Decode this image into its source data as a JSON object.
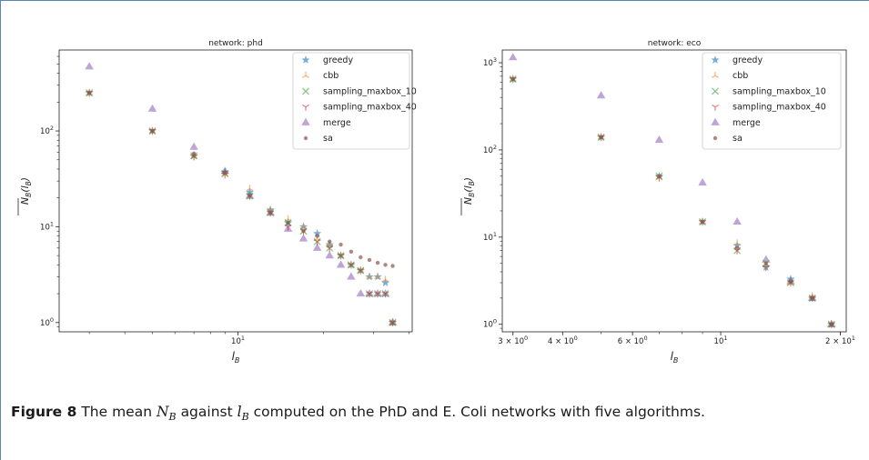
{
  "colors": {
    "greedy": "#1f77b4",
    "cbb": "#ff7f0e",
    "sampling_maxbox_10": "#2ca02c",
    "sampling_maxbox_40": "#d62728",
    "merge": "#9467bd",
    "sa": "#8c564b"
  },
  "legend_entries": [
    "greedy",
    "cbb",
    "sampling_maxbox_10",
    "sampling_maxbox_40",
    "merge",
    "sa"
  ],
  "markers": {
    "greedy": "star",
    "cbb": "tri-up",
    "sampling_maxbox_10": "x",
    "sampling_maxbox_40": "tri-down",
    "merge": "triangle",
    "sa": "dot"
  },
  "caption": {
    "label": "Figure 8",
    "text_before": "The mean",
    "sym1": "N",
    "sub1": "B",
    "text_mid": "against",
    "sym2": "l",
    "sub2": "B",
    "text_after": "computed on the PhD and E. Coli networks with five algorithms."
  },
  "chart_data": [
    {
      "type": "scatter",
      "title": "network: phd",
      "xlabel": "l_B",
      "ylabel": "N_B(l_B) mean",
      "xscale": "log",
      "yscale": "log",
      "xlim": [
        2.35,
        41.0
      ],
      "ylim": [
        0.8,
        700
      ],
      "xticks": [
        {
          "value": 10,
          "label": "10^1"
        }
      ],
      "yticks": [
        {
          "value": 1,
          "label": "10^0"
        },
        {
          "value": 10,
          "label": "10^1"
        },
        {
          "value": 100,
          "label": "10^2"
        }
      ],
      "legend": "top-right",
      "series": [
        {
          "name": "greedy",
          "x": [
            3,
            5,
            7,
            9,
            11,
            13,
            15,
            17,
            19,
            21,
            23,
            25,
            27,
            29,
            31,
            33,
            35
          ],
          "y": [
            250,
            100,
            55,
            37,
            23,
            15,
            11,
            10,
            8.5,
            6.5,
            5,
            4,
            3.5,
            3,
            3,
            2.6,
            1
          ]
        },
        {
          "name": "cbb",
          "x": [
            3,
            5,
            7,
            9,
            11,
            13,
            15,
            17,
            19,
            21,
            23,
            25,
            27,
            29,
            31,
            33,
            35
          ],
          "y": [
            250,
            100,
            55,
            35,
            25,
            15,
            12,
            10,
            7.5,
            6.5,
            5,
            4,
            3.5,
            3,
            3,
            2.8,
            1
          ]
        },
        {
          "name": "sampling_maxbox_10",
          "x": [
            3,
            5,
            7,
            9,
            11,
            13,
            15,
            17,
            19,
            21,
            23,
            25,
            27,
            29,
            31,
            33,
            35
          ],
          "y": [
            250,
            100,
            55,
            36,
            21,
            14,
            11,
            9,
            7,
            6,
            5,
            4,
            3.5,
            2,
            2,
            2,
            1
          ]
        },
        {
          "name": "sampling_maxbox_40",
          "x": [
            3,
            5,
            7,
            9,
            11,
            13,
            15,
            17,
            19,
            21,
            23,
            25,
            27,
            29,
            31,
            33,
            35
          ],
          "y": [
            250,
            100,
            54,
            35,
            21,
            14,
            10,
            9,
            7,
            6,
            5,
            4,
            3.5,
            2,
            2,
            2,
            1
          ]
        },
        {
          "name": "merge",
          "x": [
            3,
            5,
            7,
            9,
            11,
            13,
            15,
            17,
            19,
            21,
            23,
            25,
            27,
            29,
            31,
            33,
            35
          ],
          "y": [
            470,
            170,
            68,
            38,
            21,
            14,
            9.5,
            7.5,
            6,
            5,
            4,
            3,
            2,
            2,
            2,
            2,
            1
          ]
        },
        {
          "name": "sa",
          "x": [
            3,
            5,
            7,
            9,
            11,
            13,
            15,
            17,
            19,
            21,
            23,
            25,
            27,
            29,
            31,
            33,
            35
          ],
          "y": [
            250,
            100,
            58,
            37,
            21,
            14,
            11,
            9,
            8,
            7,
            6.5,
            5.5,
            4.8,
            4.5,
            4.2,
            4.0,
            3.9
          ]
        }
      ]
    },
    {
      "type": "scatter",
      "title": "network: eco",
      "xlabel": "l_B",
      "ylabel": "N_B(l_B) mean",
      "xscale": "log",
      "yscale": "log",
      "xlim": [
        2.82,
        20.7
      ],
      "ylim": [
        0.82,
        1400
      ],
      "xticks": [
        {
          "value": 3,
          "label": "3 × 10^0"
        },
        {
          "value": 4,
          "label": "4 × 10^0"
        },
        {
          "value": 6,
          "label": "6 × 10^0"
        },
        {
          "value": 10,
          "label": "10^1"
        },
        {
          "value": 20,
          "label": "2 × 10^1"
        }
      ],
      "yticks": [
        {
          "value": 1,
          "label": "10^0"
        },
        {
          "value": 10,
          "label": "10^1"
        },
        {
          "value": 100,
          "label": "10^2"
        },
        {
          "value": 1000,
          "label": "10^3"
        }
      ],
      "legend": "top-right",
      "series": [
        {
          "name": "greedy",
          "x": [
            3,
            5,
            7,
            9,
            11,
            13,
            15,
            17,
            19
          ],
          "y": [
            650,
            140,
            50,
            15,
            8,
            4.5,
            3.3,
            2,
            1
          ]
        },
        {
          "name": "cbb",
          "x": [
            3,
            5,
            7,
            9,
            11,
            13,
            15,
            17,
            19
          ],
          "y": [
            650,
            140,
            48,
            15,
            8.5,
            4.8,
            3,
            2.1,
            1
          ]
        },
        {
          "name": "sampling_maxbox_10",
          "x": [
            3,
            5,
            7,
            9,
            11,
            13,
            15,
            17,
            19
          ],
          "y": [
            650,
            140,
            50,
            15,
            7,
            5,
            3,
            2,
            1
          ]
        },
        {
          "name": "sampling_maxbox_40",
          "x": [
            3,
            5,
            7,
            9,
            11,
            13,
            15,
            17,
            19
          ],
          "y": [
            650,
            140,
            48,
            15,
            7,
            4.5,
            3,
            2,
            1
          ]
        },
        {
          "name": "merge",
          "x": [
            3,
            5,
            7,
            9,
            11,
            13,
            15,
            17,
            19
          ],
          "y": [
            1150,
            420,
            130,
            42,
            15,
            5.5,
            3.1,
            2,
            1
          ]
        },
        {
          "name": "sa",
          "x": [
            3,
            5,
            7,
            9,
            11,
            13,
            15,
            17,
            19
          ],
          "y": [
            650,
            140,
            50,
            15,
            7.5,
            5,
            3.1,
            2,
            1
          ]
        }
      ]
    }
  ]
}
